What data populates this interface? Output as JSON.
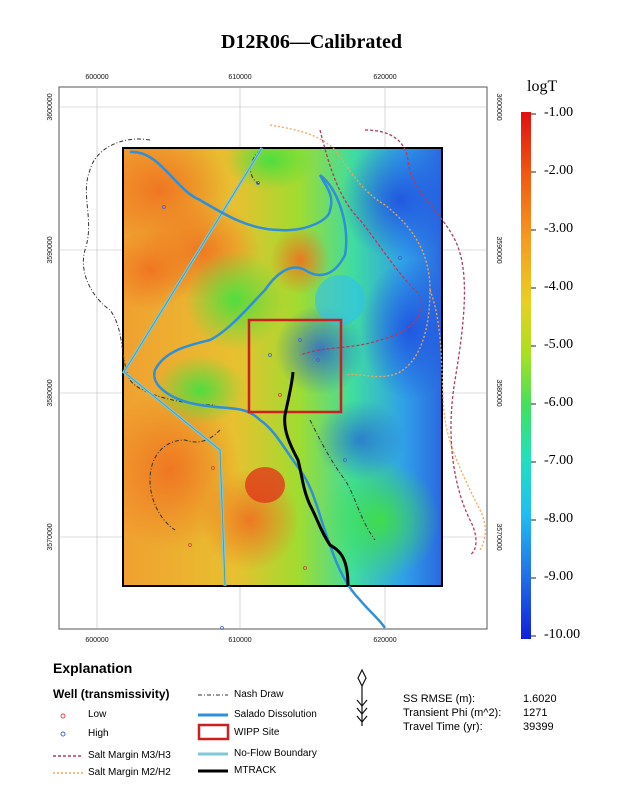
{
  "title": "D12R06—Calibrated",
  "x_ticks": [
    "600000",
    "610000",
    "620000"
  ],
  "y_ticks": [
    "3600000",
    "3590000",
    "3580000",
    "3570000"
  ],
  "colorbar": {
    "title": "logT",
    "labels": [
      "-1.00",
      "-2.00",
      "-3.00",
      "-4.00",
      "-5.00",
      "-6.00",
      "-7.00",
      "-8.00",
      "-9.00",
      "-10.00"
    ]
  },
  "explanation": {
    "title": "Explanation",
    "wells_title": "Well (transmissivity)",
    "low": "Low",
    "high": "High",
    "salt_m3": "Salt Margin M3/H3",
    "salt_m2": "Salt Margin M2/H2",
    "nash_draw": "Nash Draw",
    "salado": "Salado Dissolution",
    "wipp": "WIPP Site",
    "no_flow": "No-Flow Boundary",
    "mtrack": "MTRACK"
  },
  "stats": {
    "rmse_label": "SS RMSE (m):",
    "rmse_value": "1.6020",
    "phi_label": "Transient Phi (m^2):",
    "phi_value": "1271",
    "travel_label": "Travel Time (yr):",
    "travel_value": "39399"
  },
  "colors": {
    "salt_m3": "#b23a5e",
    "salt_m2": "#f2a65a",
    "nash_draw": "#333333",
    "salado": "#2f8fd8",
    "wipp": "#cc1f1f",
    "no_flow": "#7fc8d8",
    "mtrack": "#000000",
    "low_well": "#d04040",
    "high_well": "#4060d0"
  }
}
